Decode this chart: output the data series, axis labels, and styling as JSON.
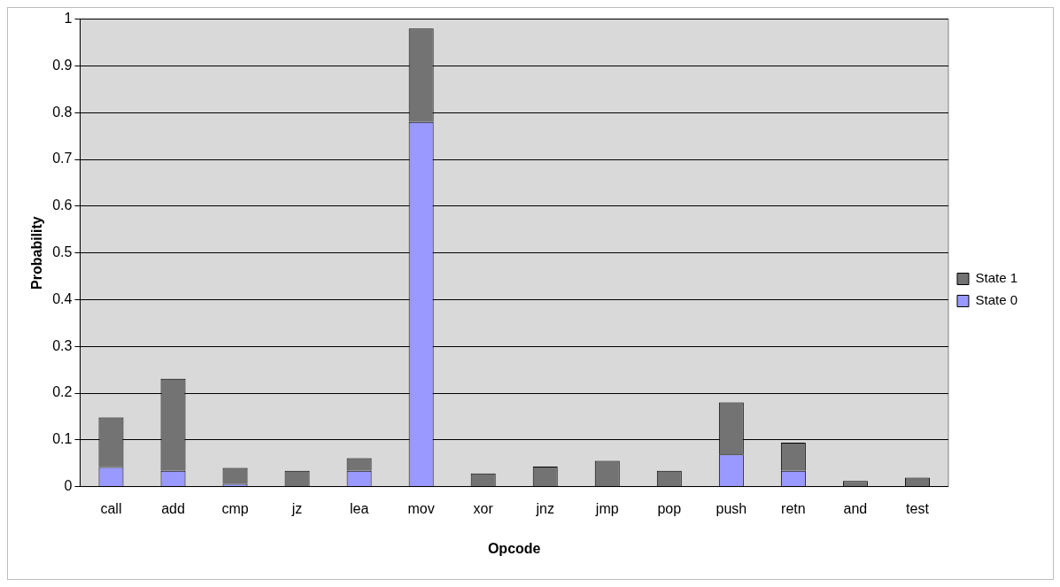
{
  "chart_data": {
    "type": "bar",
    "stacked": true,
    "xlabel": "Opcode",
    "ylabel": "Probability",
    "categories": [
      "call",
      "add",
      "cmp",
      "jz",
      "lea",
      "mov",
      "xor",
      "jnz",
      "jmp",
      "pop",
      "push",
      "retn",
      "and",
      "test"
    ],
    "series": [
      {
        "name": "State 0",
        "color": "#9999ff",
        "values": [
          0.042,
          0.034,
          0.006,
          0,
          0.034,
          0.78,
          0,
          0,
          0,
          0,
          0.069,
          0.034,
          0,
          0
        ]
      },
      {
        "name": "State 1",
        "color": "#737373",
        "values": [
          0.106,
          0.197,
          0.034,
          0.034,
          0.027,
          0.2,
          0.028,
          0.043,
          0.055,
          0.034,
          0.111,
          0.06,
          0.012,
          0.019
        ]
      }
    ],
    "ylim": [
      0,
      1
    ],
    "yticks": [
      0,
      0.1,
      0.2,
      0.3,
      0.4,
      0.5,
      0.6,
      0.7,
      0.8,
      0.9,
      1
    ],
    "grid": "y",
    "legend": "right"
  }
}
